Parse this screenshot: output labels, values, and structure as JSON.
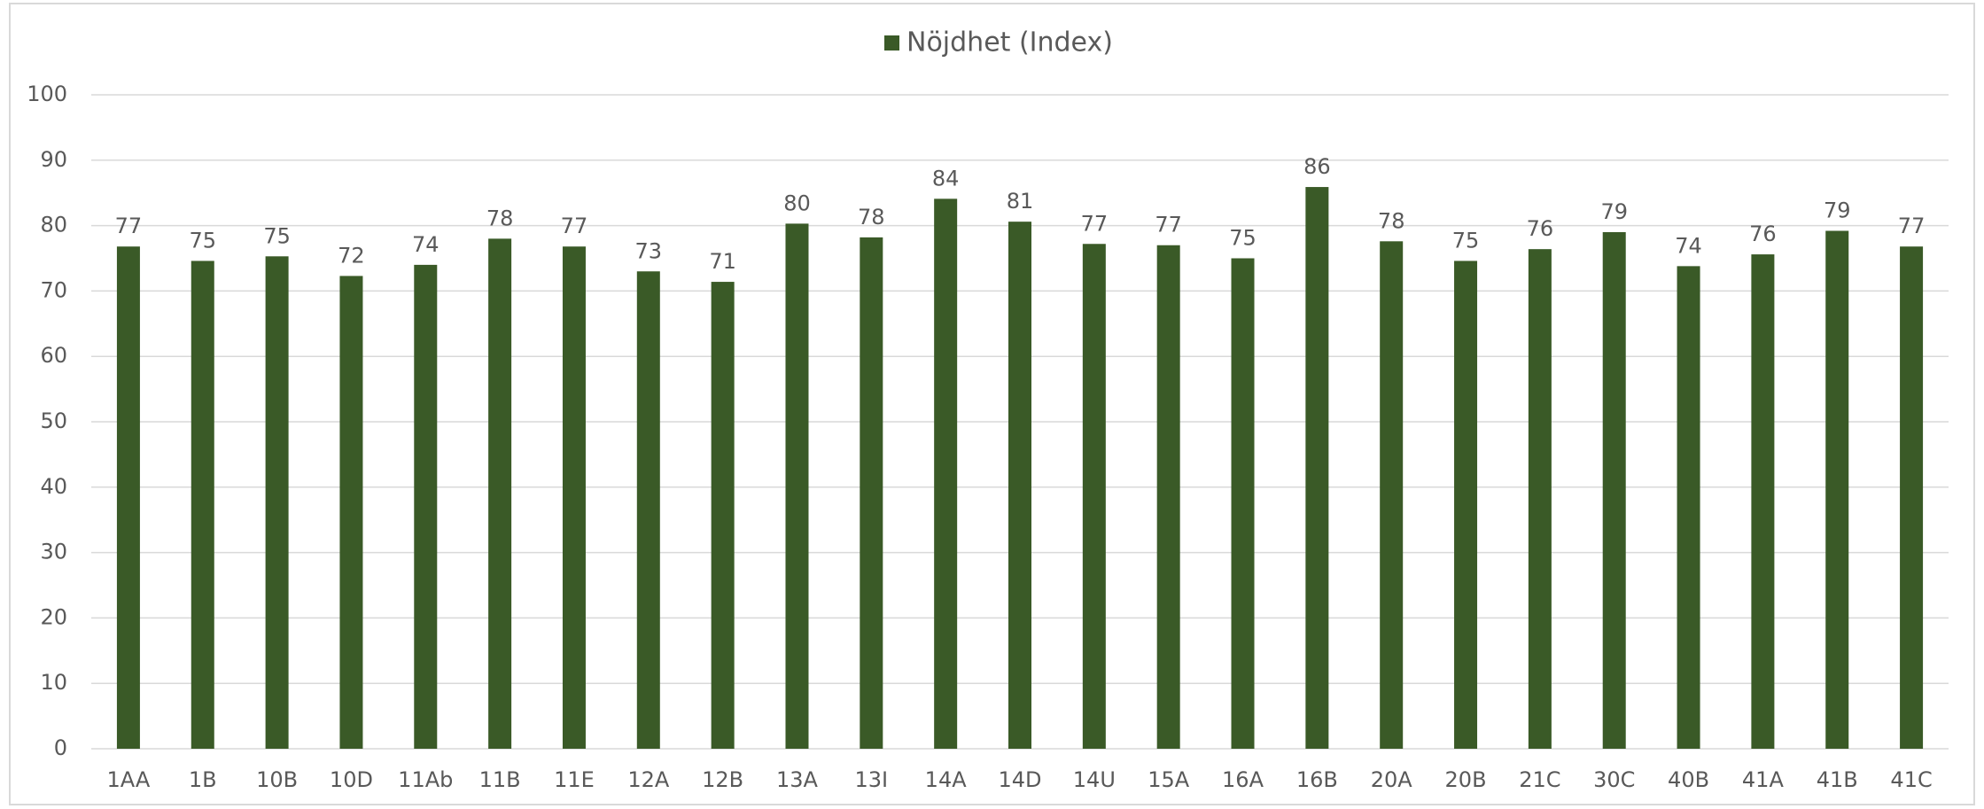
{
  "chart_data": {
    "type": "bar",
    "legend": "Nöjdhet (Index)",
    "color": "#3a5a27",
    "categories": [
      "1AA",
      "1B",
      "10B",
      "10D",
      "11Ab",
      "11B",
      "11E",
      "12A",
      "12B",
      "13A",
      "13I",
      "14A",
      "14D",
      "14U",
      "15A",
      "16A",
      "16B",
      "20A",
      "20B",
      "21C",
      "30C",
      "40B",
      "41A",
      "41B",
      "41C"
    ],
    "values": [
      76.8,
      74.6,
      75.3,
      72.3,
      74,
      78,
      76.8,
      73,
      71.4,
      80.3,
      78.2,
      84.1,
      80.6,
      77.2,
      77,
      75,
      85.9,
      77.6,
      74.6,
      76.4,
      79,
      73.8,
      75.6,
      79.2,
      76.8
    ],
    "value_labels": [
      "77",
      "75",
      "75",
      "72",
      "74",
      "78",
      "77",
      "73",
      "71",
      "80",
      "78",
      "84",
      "81",
      "77",
      "77",
      "75",
      "86",
      "78",
      "75",
      "76",
      "79",
      "74",
      "76",
      "79",
      "77"
    ],
    "ylim": [
      0,
      100
    ],
    "yticks": [
      0,
      10,
      20,
      30,
      40,
      50,
      60,
      70,
      80,
      90,
      100
    ],
    "grid": true
  }
}
